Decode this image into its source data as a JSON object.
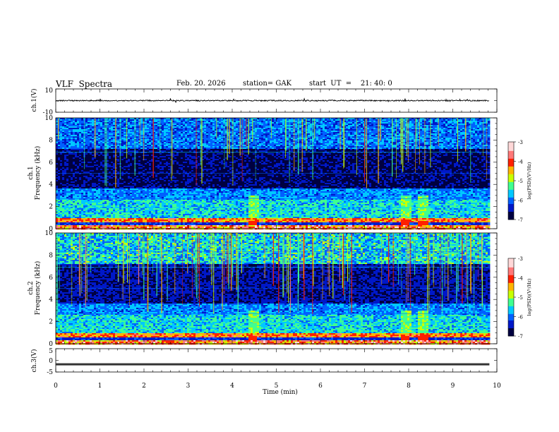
{
  "header": {
    "title": "VLF  Spectra",
    "date": "Feb. 20. 2026",
    "station": "station= GAK",
    "start_ut": "start  UT  =    21: 40: 0"
  },
  "chart_data": [
    {
      "type": "line",
      "name": "ch1-waveform",
      "ylabel": "ch.1(V)",
      "ylim": [
        -10,
        10
      ],
      "y_ticks": [
        "10",
        "-10"
      ],
      "x_range": [
        0,
        10
      ],
      "data_extent_x": [
        0,
        9.83
      ],
      "baseline_value": 0,
      "typical_amplitude": 1
    },
    {
      "type": "heatmap",
      "name": "ch1-spectrogram",
      "ylabel_line1": "ch.1",
      "ylabel_line2": "Frequency  (kHz)",
      "ylim": [
        0,
        10
      ],
      "y_ticks": [
        "0",
        "2",
        "4",
        "6",
        "8",
        "10"
      ],
      "x_range": [
        0,
        10
      ],
      "data_extent_x": [
        0,
        9.83
      ],
      "colorbar": {
        "label": "log(PSD)(V²/Hz)",
        "range": [
          -7,
          -3
        ],
        "ticks": [
          "-3",
          "-4",
          "-5",
          "-6",
          "-7"
        ]
      }
    },
    {
      "type": "heatmap",
      "name": "ch2-spectrogram",
      "ylabel_line1": "ch.2",
      "ylabel_line2": "Frequency  (kHz)",
      "ylim": [
        0,
        10
      ],
      "y_ticks": [
        "0",
        "2",
        "4",
        "6",
        "8",
        "10"
      ],
      "x_range": [
        0,
        10
      ],
      "data_extent_x": [
        0,
        9.83
      ],
      "colorbar": {
        "label": "log(PSD)(V²/Hz)",
        "range": [
          -7,
          -3
        ],
        "ticks": [
          "-3",
          "-4",
          "-5",
          "-6",
          "-7"
        ]
      }
    },
    {
      "type": "line",
      "name": "ch3-waveform",
      "ylabel": "ch.3(V)",
      "ylim": [
        -5,
        5
      ],
      "y_ticks": [
        "5",
        "0",
        "-5"
      ],
      "x_range": [
        0,
        10
      ],
      "data_extent_x": [
        0,
        9.83
      ],
      "baseline_value": -1.7,
      "xlabel": "Time  (min)",
      "x_ticks": [
        "0",
        "1",
        "2",
        "3",
        "4",
        "5",
        "6",
        "7",
        "8",
        "9",
        "10"
      ]
    }
  ],
  "colors": {
    "ink": "#000000",
    "colormap": [
      "#000040",
      "#0018c8",
      "#0060ff",
      "#00c8ff",
      "#40ff90",
      "#c8ff00",
      "#ffb400",
      "#ff2000",
      "#ff7878",
      "#ffd8d8"
    ]
  }
}
